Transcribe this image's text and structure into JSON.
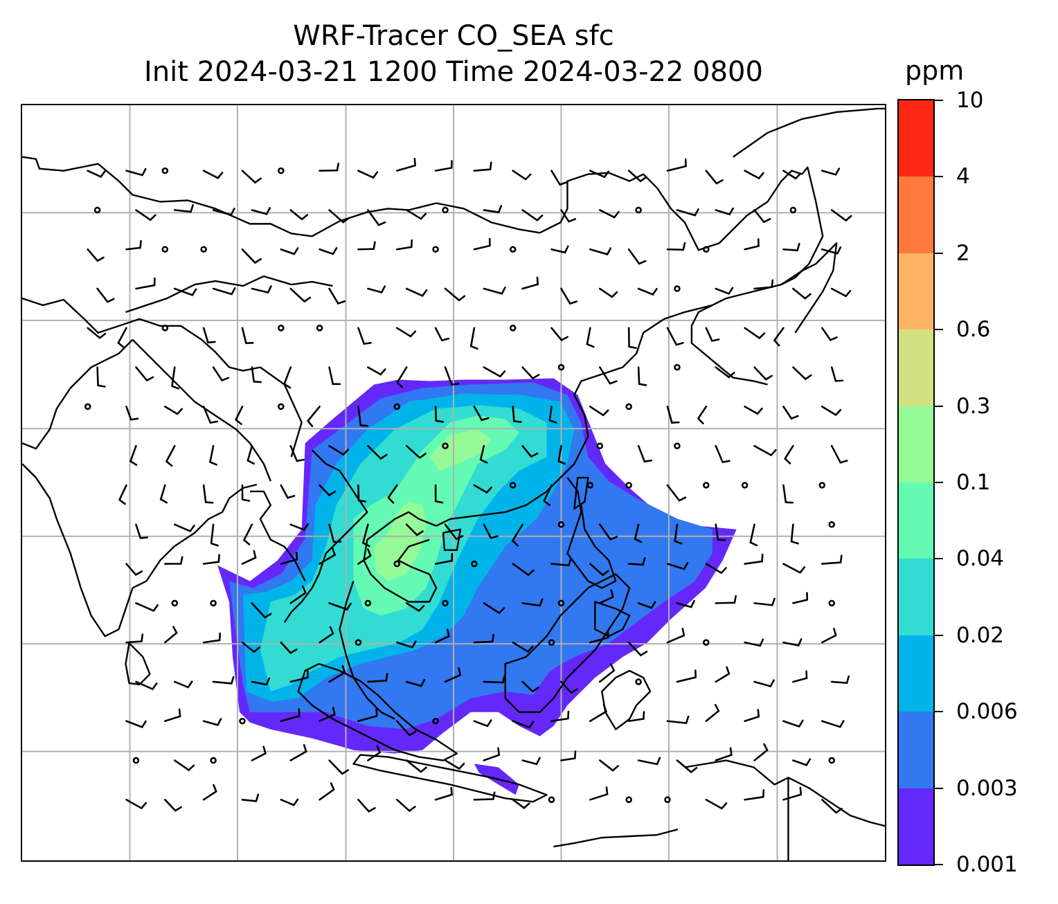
{
  "title": {
    "line1": "WRF-Tracer CO_SEA sfc",
    "line2": "Init 2024-03-21 1200 Time 2024-03-22 0800"
  },
  "colorbar": {
    "unit": "ppm",
    "levels": [
      "0.001",
      "0.003",
      "0.006",
      "0.02",
      "0.04",
      "0.1",
      "0.3",
      "0.6",
      "2",
      "4",
      "10"
    ],
    "colors": [
      "#6428fa",
      "#3278f0",
      "#00b4ea",
      "#32dcd2",
      "#64fab4",
      "#96fa96",
      "#d2e182",
      "#ffb464",
      "#ff783c",
      "#ff2814"
    ]
  },
  "map": {
    "gridlines": true,
    "wind_barbs": true,
    "coastline_color": "#000000",
    "grid_color": "#b0b0b0"
  }
}
